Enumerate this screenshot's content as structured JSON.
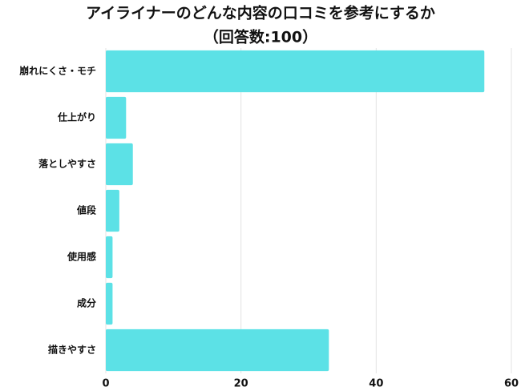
{
  "chart_data": {
    "type": "bar",
    "orientation": "horizontal",
    "title": "アイライナーのどんな内容の口コミを参考にするか",
    "subtitle": "（回答数:100）",
    "categories": [
      "崩れにくさ・モチ",
      "仕上がり",
      "落としやすさ",
      "値段",
      "使用感",
      "成分",
      "描きやすさ"
    ],
    "values": [
      56,
      3,
      4,
      2,
      1,
      1,
      33
    ],
    "color": "#5ce1e6",
    "xlim": [
      0,
      60
    ],
    "xticks": [
      0,
      20,
      40,
      60
    ],
    "grid": true
  }
}
